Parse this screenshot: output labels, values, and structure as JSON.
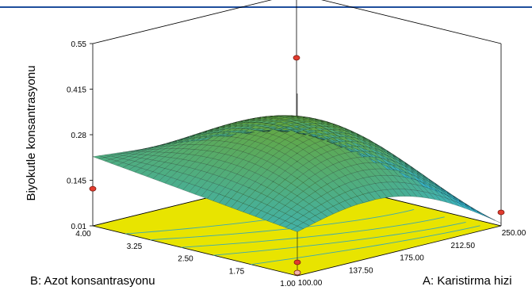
{
  "chart_data": {
    "type": "surface3d",
    "title": "",
    "zlabel": "Biyokutle konsantrasyonu",
    "xlabel": "A: Karistirma hizi",
    "ylabel": "B: Azot konsantrasyonu",
    "z_ticks": [
      "0.01",
      "0.145",
      "0.28",
      "0.415",
      "0.55"
    ],
    "x_ticks": [
      "100.00",
      "137.50",
      "175.00",
      "212.50",
      "250.00"
    ],
    "y_ticks": [
      "1.00",
      "1.75",
      "2.50",
      "3.25",
      "4.00"
    ],
    "xlim": [
      100,
      250
    ],
    "ylim": [
      1,
      4
    ],
    "zlim": [
      0.01,
      0.55
    ],
    "surface_corners": [
      {
        "A": 100,
        "B": 4.0,
        "z": 0.215
      },
      {
        "A": 250,
        "B": 4.0,
        "z": 0.158
      },
      {
        "A": 100,
        "B": 1.0,
        "z": 0.14
      },
      {
        "A": 250,
        "B": 1.0,
        "z": 0.018
      }
    ],
    "surface_peak": {
      "A": 175,
      "B": 3.6,
      "z": 0.4
    },
    "design_points": [
      {
        "A": 250,
        "B": 4.0,
        "z": 0.36
      },
      {
        "A": 100,
        "B": 4.0,
        "z": 0.12
      },
      {
        "A": 250,
        "B": 1.0,
        "z": 0.05
      },
      {
        "A": 100,
        "B": 1.0,
        "z": 0.05
      }
    ],
    "colors": {
      "surface_high": "#6ea41f",
      "surface_low": "#2fb7e6",
      "floor": "#e8e400",
      "contour": "#3aa9b4",
      "point_fill": "#e23b2e",
      "frame": "#000000"
    },
    "grid": false
  }
}
